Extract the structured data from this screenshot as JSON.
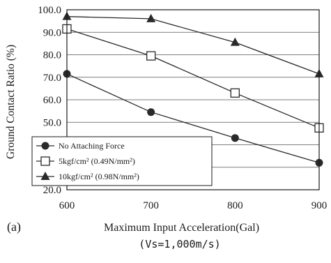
{
  "chart_data": {
    "type": "line",
    "panel_label": "(a)",
    "xlabel": "Maximum Input Acceleration(Gal)",
    "subtitle": "(Vs=1,000m/s)",
    "ylabel": "Ground Contact Ratio (%)",
    "x_ticks": [
      "600",
      "700",
      "800",
      "900"
    ],
    "y_ticks": [
      "20.0",
      "30.0",
      "40.0",
      "50.0",
      "60.0",
      "70.0",
      "80.0",
      "90.0",
      "100.0"
    ],
    "xlim": [
      600,
      900
    ],
    "ylim": [
      20,
      100
    ],
    "grid": "horizontal",
    "legend_position": "bottom-left",
    "x": [
      600,
      700,
      800,
      900
    ],
    "series": [
      {
        "name": "No Attaching Force",
        "marker": "circle-filled",
        "values": [
          71.5,
          54.5,
          43.0,
          32.0
        ]
      },
      {
        "name": "5kgf/cm² (0.49N/mm²)",
        "marker": "square-open",
        "values": [
          91.5,
          79.5,
          63.0,
          47.5
        ]
      },
      {
        "name": "10kgf/cm² (0.98N/mm²)",
        "marker": "triangle-filled",
        "values": [
          97.0,
          96.0,
          85.5,
          71.5
        ]
      }
    ]
  }
}
